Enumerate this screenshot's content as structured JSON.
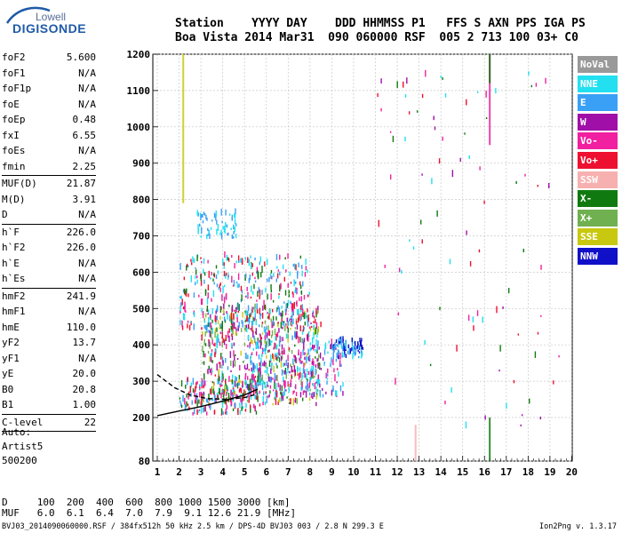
{
  "logo": {
    "top": "Lowell",
    "main": "DIGISONDE"
  },
  "header": {
    "line1": "Station    YYYY DAY    DDD HHMMSS P1   FFS S AXN PPS IGA PS",
    "line2": "Boa Vista 2014 Mar31  090 060000 RSF  005 2 713 100 03+ C0"
  },
  "params": [
    {
      "k": "foF2",
      "v": "5.600"
    },
    {
      "k": "foF1",
      "v": "N/A"
    },
    {
      "k": "foF1p",
      "v": "N/A"
    },
    {
      "k": "foE",
      "v": "N/A"
    },
    {
      "k": "foEp",
      "v": "0.48"
    },
    {
      "k": "fxI",
      "v": "6.55"
    },
    {
      "k": "foEs",
      "v": "N/A"
    },
    {
      "k": "fmin",
      "v": "2.25",
      "sep": true
    },
    {
      "k": "MUF(D)",
      "v": "21.87"
    },
    {
      "k": "M(D)",
      "v": "3.91"
    },
    {
      "k": "D",
      "v": "N/A",
      "sep": true
    },
    {
      "k": "h`F",
      "v": "226.0"
    },
    {
      "k": "h`F2",
      "v": "226.0"
    },
    {
      "k": "h`E",
      "v": "N/A"
    },
    {
      "k": "h`Es",
      "v": "N/A",
      "sep": true
    },
    {
      "k": "hmF2",
      "v": "241.9"
    },
    {
      "k": "hmF1",
      "v": "N/A"
    },
    {
      "k": "hmE",
      "v": "110.0"
    },
    {
      "k": "yF2",
      "v": "13.7"
    },
    {
      "k": "yF1",
      "v": "N/A"
    },
    {
      "k": "yE",
      "v": "20.0"
    },
    {
      "k": "B0",
      "v": "20.8"
    },
    {
      "k": "B1",
      "v": "1.00",
      "sep": true
    },
    {
      "k": "C-level",
      "v": "22",
      "sep": true
    }
  ],
  "auto": {
    "line1": "Auto:",
    "line2": "Artist5",
    "line3": "500200"
  },
  "mufTable": {
    "line1": "D     100  200  400  600  800 1000 1500 3000 [km]",
    "line2": "MUF   6.0  6.1  6.4  7.0  7.9  9.1 12.6 21.9 [MHz]"
  },
  "footer": {
    "left": "BVJ03_2014090060000.RSF / 384fx512h 50 kHz 2.5 km / DPS-4D BVJ03 003 / 2.8 N 299.3 E",
    "right": "Ion2Png v. 1.3.17"
  },
  "chart_data": {
    "type": "scatter",
    "title": "",
    "xlabel": "",
    "ylabel": "",
    "xlim": [
      0.5,
      20
    ],
    "ylim": [
      80,
      1200
    ],
    "x_ticks": [
      "1",
      "2",
      "3",
      "4",
      "5",
      "6",
      "7",
      "8",
      "9",
      "10",
      "11",
      "12",
      "13",
      "14",
      "15",
      "16",
      "17",
      "18",
      "19",
      "20"
    ],
    "y_ticks": [
      "80",
      "200",
      "300",
      "400",
      "500",
      "600",
      "700",
      "800",
      "900",
      "1000",
      "1100",
      "1200"
    ],
    "grid": true,
    "legend_position": "right",
    "legend": [
      {
        "name": "NoVal",
        "color": "#999999"
      },
      {
        "name": "NNE",
        "color": "#22e0f0"
      },
      {
        "name": "E",
        "color": "#3aa0f5"
      },
      {
        "name": "W",
        "color": "#a010a8"
      },
      {
        "name": "Vo-",
        "color": "#f020a0"
      },
      {
        "name": "Vo+",
        "color": "#ee1030"
      },
      {
        "name": "SSW",
        "color": "#f7b0b0"
      },
      {
        "name": "X-",
        "color": "#107a10"
      },
      {
        "name": "X+",
        "color": "#70b050"
      },
      {
        "name": "SSE",
        "color": "#c8c810"
      },
      {
        "name": "NNW",
        "color": "#1010c8"
      }
    ],
    "traces": [
      {
        "name": "F2 O-trace",
        "x": [
          1.0,
          2.0,
          3.0,
          4.0,
          5.0,
          5.6
        ],
        "y": [
          205,
          218,
          230,
          245,
          262,
          278
        ]
      },
      {
        "name": "F2 model",
        "x": [
          1.0,
          1.8,
          2.5,
          3.3,
          4.2,
          5.0,
          5.6
        ],
        "y": [
          318,
          282,
          262,
          252,
          250,
          255,
          265
        ]
      }
    ],
    "clusters": [
      {
        "x": [
          2.0,
          5.6
        ],
        "y": [
          205,
          300
        ],
        "colors": [
          "#22e0f0",
          "#3aa0f5",
          "#107a10",
          "#f020a0",
          "#ee1030"
        ],
        "n": 180
      },
      {
        "x": [
          3.0,
          8.5
        ],
        "y": [
          230,
          500
        ],
        "colors": [
          "#22e0f0",
          "#3aa0f5",
          "#107a10",
          "#f020a0",
          "#a010a8",
          "#ee1030",
          "#c8c810",
          "#70b050"
        ],
        "n": 650
      },
      {
        "x": [
          5.0,
          9.5
        ],
        "y": [
          250,
          420
        ],
        "colors": [
          "#22e0f0",
          "#3aa0f5",
          "#f020a0",
          "#a010a8"
        ],
        "n": 220
      },
      {
        "x": [
          9.0,
          10.4
        ],
        "y": [
          360,
          410
        ],
        "colors": [
          "#1010c8",
          "#3aa0f5",
          "#22e0f0"
        ],
        "n": 80
      },
      {
        "x": [
          2.0,
          8.0
        ],
        "y": [
          440,
          640
        ],
        "colors": [
          "#22e0f0",
          "#3aa0f5",
          "#107a10",
          "#f020a0",
          "#ee1030"
        ],
        "n": 320
      },
      {
        "x": [
          2.8,
          4.6
        ],
        "y": [
          690,
          760
        ],
        "colors": [
          "#22e0f0",
          "#3aa0f5"
        ],
        "n": 60
      },
      {
        "x": [
          11.0,
          19.5
        ],
        "y": [
          150,
          1150
        ],
        "colors": [
          "#107a10",
          "#ee1030",
          "#f020a0",
          "#22e0f0",
          "#a010a8"
        ],
        "n": 90
      }
    ],
    "columns": [
      {
        "x": 16.2,
        "y": [
          80,
          200
        ],
        "color": "#107a10"
      },
      {
        "x": 16.2,
        "y": [
          950,
          1200
        ],
        "color": "#f020a0"
      },
      {
        "x": 16.2,
        "y": [
          1120,
          1200
        ],
        "color": "#107a10"
      },
      {
        "x": 2.15,
        "y": [
          790,
          1200
        ],
        "color": "#c8c810"
      },
      {
        "x": 12.8,
        "y": [
          80,
          180
        ],
        "color": "#f7b0b0"
      }
    ]
  }
}
